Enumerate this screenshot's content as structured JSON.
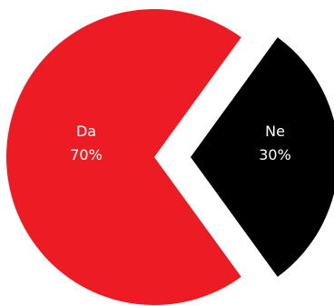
{
  "chart_data": {
    "type": "pie",
    "categories": [
      "Da",
      "Ne"
    ],
    "values": [
      70,
      30
    ],
    "value_labels": [
      "70%",
      "30%"
    ],
    "colors": [
      "#ed1c24",
      "#000000"
    ],
    "exploded": "Ne"
  }
}
